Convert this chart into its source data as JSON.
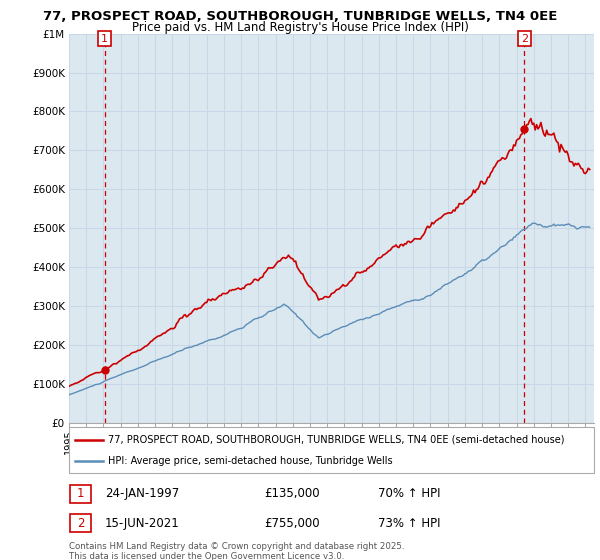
{
  "title_line1": "77, PROSPECT ROAD, SOUTHBOROUGH, TUNBRIDGE WELLS, TN4 0EE",
  "title_line2": "Price paid vs. HM Land Registry's House Price Index (HPI)",
  "ylabel_ticks": [
    "£0",
    "£100K",
    "£200K",
    "£300K",
    "£400K",
    "£500K",
    "£600K",
    "£700K",
    "£800K",
    "£900K",
    "£1M"
  ],
  "ylim": [
    0,
    1000000
  ],
  "xlim_start": 1995.0,
  "xlim_end": 2025.5,
  "purchase1_x": 1997.07,
  "purchase1_y": 135000,
  "purchase1_label": "1",
  "purchase1_date": "24-JAN-1997",
  "purchase1_price": "£135,000",
  "purchase1_hpi": "70% ↑ HPI",
  "purchase2_x": 2021.46,
  "purchase2_y": 755000,
  "purchase2_label": "2",
  "purchase2_date": "15-JUN-2021",
  "purchase2_price": "£755,000",
  "purchase2_hpi": "73% ↑ HPI",
  "legend_line1": "77, PROSPECT ROAD, SOUTHBOROUGH, TUNBRIDGE WELLS, TN4 0EE (semi-detached house)",
  "legend_line2": "HPI: Average price, semi-detached house, Tunbridge Wells",
  "footer": "Contains HM Land Registry data © Crown copyright and database right 2025.\nThis data is licensed under the Open Government Licence v3.0.",
  "color_red": "#cc0000",
  "color_blue": "#5b8db8",
  "color_grid": "#c8d8e8",
  "bg_plot": "#dce8f0",
  "background_color": "#ffffff"
}
